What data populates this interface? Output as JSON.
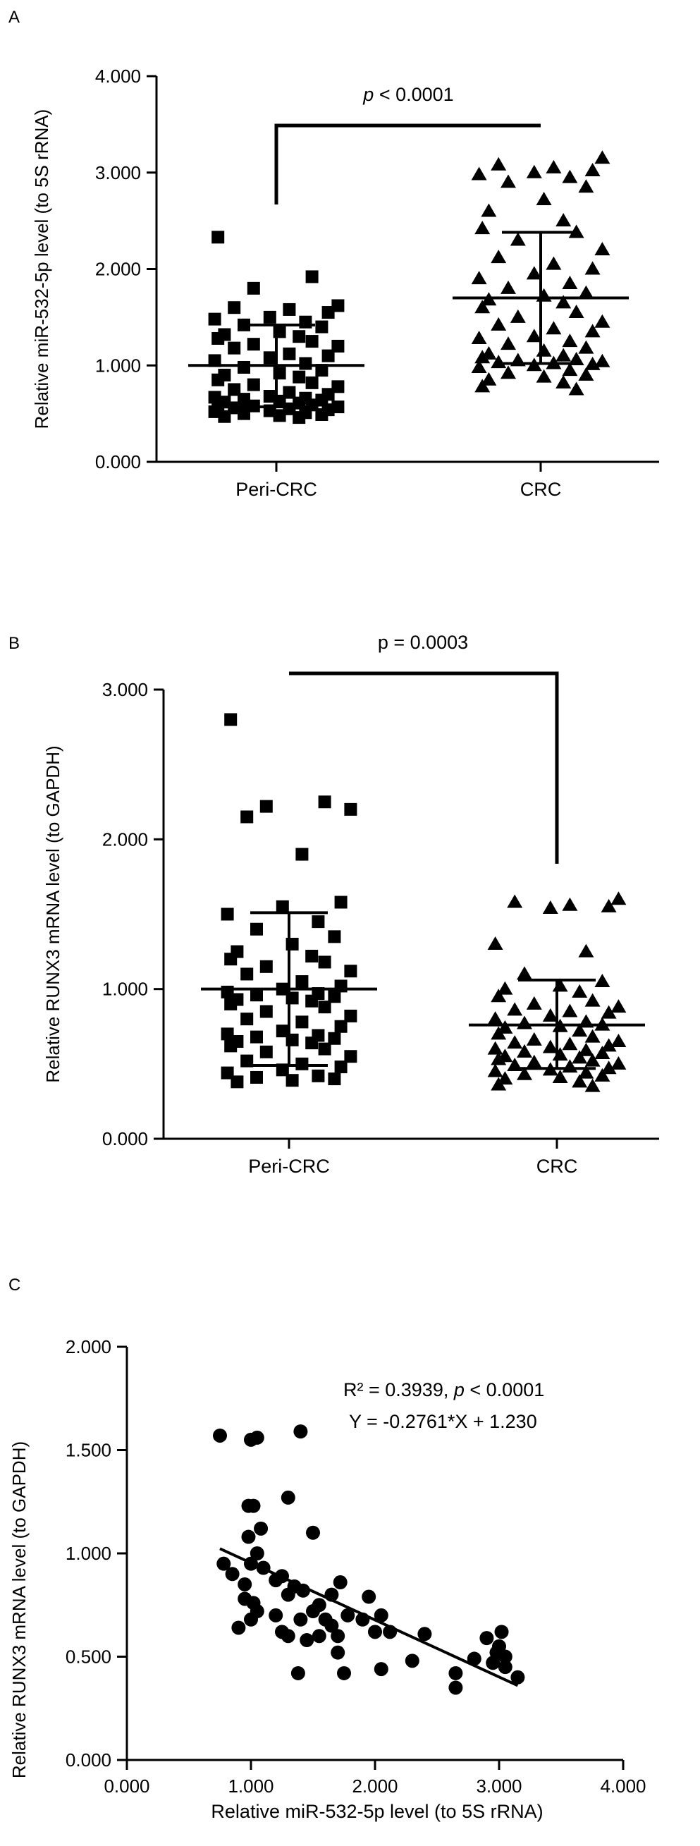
{
  "chart_data": [
    {
      "panel_label": "A",
      "type": "scatter",
      "categories": [
        "Peri-CRC",
        "CRC"
      ],
      "ylabel": "Relative miR-532-5p level (to 5S rRNA)",
      "yticks": [
        "0.000",
        "1.000",
        "2.000",
        "3.000",
        "4.000"
      ],
      "ylim": [
        0,
        4
      ],
      "annotation": "< 0.0001",
      "annotation_italic": "p",
      "groups": [
        {
          "name": "Peri-CRC",
          "marker": "square",
          "mean": 1.0,
          "sd_upper": 1.42,
          "sd_lower": 0.57,
          "values": [
            2.33,
            1.92,
            1.8,
            1.62,
            1.6,
            1.58,
            1.55,
            1.5,
            1.48,
            1.45,
            1.42,
            1.4,
            1.35,
            1.32,
            1.3,
            1.28,
            1.25,
            1.22,
            1.2,
            1.18,
            1.12,
            1.1,
            1.08,
            1.05,
            1.02,
            0.98,
            0.95,
            0.92,
            0.9,
            0.88,
            0.85,
            0.82,
            0.8,
            0.78,
            0.75,
            0.72,
            0.7,
            0.68,
            0.67,
            0.66,
            0.65,
            0.64,
            0.63,
            0.62,
            0.61,
            0.6,
            0.59,
            0.58,
            0.57,
            0.56,
            0.55,
            0.54,
            0.53,
            0.52,
            0.51,
            0.5,
            0.49,
            0.48,
            0.47,
            0.46
          ]
        },
        {
          "name": "CRC",
          "marker": "triangle",
          "mean": 1.7,
          "sd_upper": 2.38,
          "sd_lower": 1.02,
          "values": [
            3.15,
            3.08,
            3.05,
            3.02,
            3.0,
            2.98,
            2.95,
            2.9,
            2.85,
            2.72,
            2.6,
            2.5,
            2.42,
            2.38,
            2.3,
            2.2,
            2.12,
            2.05,
            2.0,
            1.95,
            1.9,
            1.85,
            1.8,
            1.75,
            1.72,
            1.68,
            1.65,
            1.6,
            1.55,
            1.5,
            1.45,
            1.42,
            1.38,
            1.35,
            1.3,
            1.28,
            1.25,
            1.22,
            1.18,
            1.15,
            1.12,
            1.1,
            1.08,
            1.06,
            1.05,
            1.04,
            1.03,
            1.02,
            1.01,
            1.0,
            0.98,
            0.95,
            0.92,
            0.9,
            0.88,
            0.85,
            0.82,
            0.78,
            0.75
          ]
        }
      ]
    },
    {
      "panel_label": "B",
      "type": "scatter",
      "categories": [
        "Peri-CRC",
        "CRC"
      ],
      "ylabel": "Relative RUNX3 mRNA level (to GAPDH)",
      "yticks": [
        "0.000",
        "1.000",
        "2.000",
        "3.000"
      ],
      "ylim": [
        0,
        3
      ],
      "annotation": "p = 0.0003",
      "groups": [
        {
          "name": "Peri-CRC",
          "marker": "square",
          "mean": 1.0,
          "sd_upper": 1.51,
          "sd_lower": 0.49,
          "values": [
            2.8,
            2.25,
            2.22,
            2.2,
            2.15,
            1.9,
            1.58,
            1.55,
            1.5,
            1.45,
            1.4,
            1.35,
            1.3,
            1.25,
            1.22,
            1.2,
            1.18,
            1.15,
            1.12,
            1.1,
            1.05,
            1.02,
            1.0,
            0.98,
            0.97,
            0.96,
            0.95,
            0.94,
            0.93,
            0.92,
            0.9,
            0.88,
            0.85,
            0.82,
            0.8,
            0.78,
            0.75,
            0.72,
            0.7,
            0.69,
            0.68,
            0.67,
            0.66,
            0.65,
            0.64,
            0.62,
            0.6,
            0.58,
            0.55,
            0.52,
            0.5,
            0.48,
            0.46,
            0.44,
            0.42,
            0.41,
            0.4,
            0.39,
            0.38
          ]
        },
        {
          "name": "CRC",
          "marker": "triangle",
          "mean": 0.76,
          "sd_upper": 1.06,
          "sd_lower": 0.47,
          "values": [
            1.6,
            1.58,
            1.56,
            1.55,
            1.54,
            1.3,
            1.25,
            1.1,
            1.05,
            1.02,
            1.0,
            0.98,
            0.95,
            0.92,
            0.9,
            0.88,
            0.86,
            0.85,
            0.84,
            0.82,
            0.8,
            0.78,
            0.77,
            0.76,
            0.75,
            0.74,
            0.72,
            0.7,
            0.68,
            0.66,
            0.65,
            0.64,
            0.63,
            0.62,
            0.61,
            0.6,
            0.59,
            0.58,
            0.57,
            0.56,
            0.55,
            0.54,
            0.53,
            0.52,
            0.51,
            0.5,
            0.49,
            0.48,
            0.47,
            0.46,
            0.45,
            0.44,
            0.43,
            0.42,
            0.41,
            0.4,
            0.38,
            0.36,
            0.35
          ]
        }
      ]
    },
    {
      "panel_label": "C",
      "type": "scatter",
      "xlabel": "Relative miR-532-5p level (to 5S rRNA)",
      "ylabel": "Relative RUNX3 mRNA level (to GAPDH)",
      "xticks": [
        "0.000",
        "1.000",
        "2.000",
        "3.000",
        "4.000"
      ],
      "yticks": [
        "0.000",
        "0.500",
        "1.000",
        "1.500",
        "2.000"
      ],
      "xlim": [
        0,
        4
      ],
      "ylim": [
        0,
        2
      ],
      "annotation_line1": "R² = 0.3939,",
      "annotation_line1_italic": "p",
      "annotation_line1_tail": "< 0.0001",
      "annotation_line2": "Y = -0.2761*X + 1.230",
      "fit": {
        "slope": -0.2761,
        "intercept": 1.23,
        "x_range": [
          0.75,
          3.15
        ]
      },
      "points": [
        [
          0.75,
          1.57
        ],
        [
          1.0,
          1.55
        ],
        [
          1.05,
          1.56
        ],
        [
          1.4,
          1.59
        ],
        [
          1.3,
          1.27
        ],
        [
          0.98,
          1.23
        ],
        [
          1.02,
          1.23
        ],
        [
          1.08,
          1.12
        ],
        [
          1.5,
          1.1
        ],
        [
          0.98,
          1.08
        ],
        [
          1.05,
          1.0
        ],
        [
          1.1,
          0.93
        ],
        [
          1.0,
          0.95
        ],
        [
          0.85,
          0.9
        ],
        [
          0.78,
          0.95
        ],
        [
          0.95,
          0.85
        ],
        [
          1.2,
          0.87
        ],
        [
          1.25,
          0.89
        ],
        [
          1.35,
          0.84
        ],
        [
          1.3,
          0.8
        ],
        [
          1.42,
          0.82
        ],
        [
          1.02,
          0.76
        ],
        [
          1.55,
          0.75
        ],
        [
          1.65,
          0.8
        ],
        [
          1.72,
          0.86
        ],
        [
          1.5,
          0.72
        ],
        [
          1.4,
          0.68
        ],
        [
          1.2,
          0.7
        ],
        [
          1.05,
          0.72
        ],
        [
          1.0,
          0.68
        ],
        [
          0.95,
          0.78
        ],
        [
          1.6,
          0.68
        ],
        [
          1.65,
          0.65
        ],
        [
          1.78,
          0.7
        ],
        [
          1.9,
          0.68
        ],
        [
          1.95,
          0.79
        ],
        [
          2.05,
          0.7
        ],
        [
          2.0,
          0.62
        ],
        [
          1.7,
          0.6
        ],
        [
          1.55,
          0.6
        ],
        [
          1.45,
          0.58
        ],
        [
          1.3,
          0.6
        ],
        [
          1.25,
          0.62
        ],
        [
          0.9,
          0.64
        ],
        [
          1.7,
          0.52
        ],
        [
          1.75,
          0.42
        ],
        [
          1.38,
          0.42
        ],
        [
          2.05,
          0.44
        ],
        [
          2.12,
          0.62
        ],
        [
          2.4,
          0.61
        ],
        [
          2.3,
          0.48
        ],
        [
          2.65,
          0.35
        ],
        [
          2.65,
          0.42
        ],
        [
          2.8,
          0.49
        ],
        [
          2.9,
          0.59
        ],
        [
          2.95,
          0.47
        ],
        [
          3.02,
          0.62
        ],
        [
          3.0,
          0.55
        ],
        [
          3.05,
          0.45
        ],
        [
          3.15,
          0.4
        ],
        [
          3.05,
          0.5
        ],
        [
          2.98,
          0.52
        ]
      ]
    }
  ]
}
